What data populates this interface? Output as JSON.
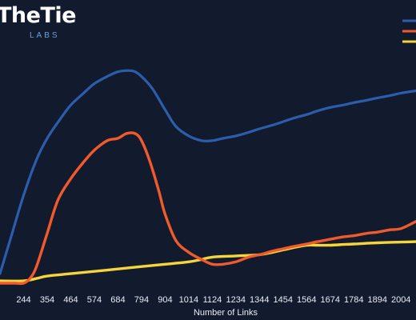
{
  "logo": {
    "main": "TheTie",
    "sub": "LABS"
  },
  "colors": {
    "background": "#121a2e",
    "blue": "#2c5dab",
    "orange": "#f05a2c",
    "yellow": "#f5d53c"
  },
  "chart_data": {
    "type": "line",
    "xlabel": "Number of Links",
    "ylabel": "",
    "x_ticks": [
      244,
      354,
      464,
      574,
      684,
      794,
      904,
      1014,
      1124,
      1234,
      1344,
      1454,
      1564,
      1674,
      1784,
      1894,
      2004
    ],
    "xlim": [
      134,
      2074
    ],
    "ylim": [
      0,
      100
    ],
    "grid": false,
    "legend": "top-right",
    "series": [
      {
        "color": "#2c5dab",
        "x": [
          134,
          184,
          244,
          304,
          354,
          414,
          464,
          524,
          574,
          634,
          684,
          734,
          764,
          794,
          844,
          904,
          954,
          1014,
          1074,
          1124,
          1174,
          1234,
          1294,
          1344,
          1404,
          1454,
          1504,
          1564,
          1614,
          1674,
          1734,
          1784,
          1844,
          1894,
          1954,
          2004,
          2074
        ],
        "values": [
          5,
          20,
          38,
          53,
          62,
          70,
          76,
          81,
          85,
          88,
          90,
          90.5,
          90,
          88,
          83,
          74,
          67,
          63,
          61,
          61,
          62,
          63,
          64.5,
          66,
          67.5,
          69,
          70.5,
          72,
          73.5,
          75,
          76,
          77,
          78,
          79,
          80,
          81,
          82
        ]
      },
      {
        "color": "#f05a2c",
        "x": [
          134,
          204,
          244,
          274,
          304,
          354,
          404,
          464,
          524,
          574,
          634,
          684,
          724,
          764,
          794,
          834,
          874,
          904,
          954,
          1014,
          1074,
          1124,
          1174,
          1234,
          1294,
          1344,
          1404,
          1454,
          1504,
          1564,
          1614,
          1674,
          1734,
          1784,
          1844,
          1894,
          1954,
          2004,
          2074
        ],
        "values": [
          1,
          1,
          1,
          3,
          8,
          22,
          36,
          45,
          52,
          57,
          61,
          62,
          64,
          64,
          61,
          52,
          40,
          30,
          19,
          14,
          11,
          9,
          9,
          10,
          12,
          13,
          14.5,
          15.5,
          16.5,
          17.5,
          18.5,
          19.5,
          20.5,
          21,
          22,
          22.5,
          23.5,
          24,
          27
        ]
      },
      {
        "color": "#f5d53c",
        "x": [
          134,
          244,
          304,
          354,
          464,
          574,
          684,
          794,
          904,
          1014,
          1074,
          1124,
          1234,
          1344,
          1404,
          1454,
          1504,
          1564,
          1614,
          1674,
          1734,
          1784,
          1844,
          1894,
          1954,
          2004,
          2074
        ],
        "values": [
          2,
          2,
          3,
          4,
          5,
          6,
          7,
          8,
          9,
          10,
          11,
          12,
          12.5,
          13,
          14,
          15,
          16,
          17,
          17,
          17,
          17.3,
          17.5,
          17.8,
          18,
          18.2,
          18.3,
          18.5
        ]
      }
    ]
  }
}
